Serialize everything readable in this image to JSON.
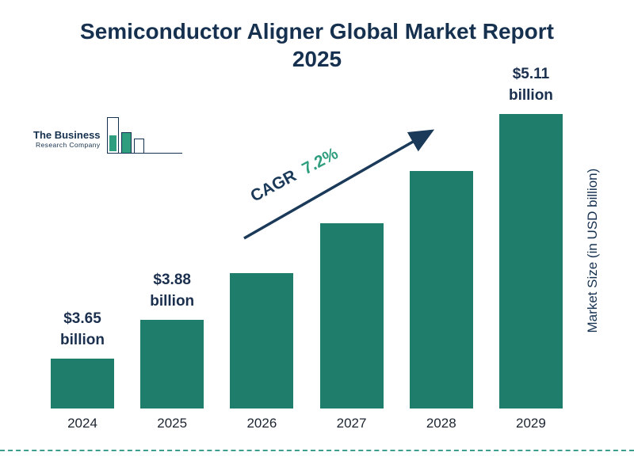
{
  "title": "Semiconductor Aligner Global Market Report\n2025",
  "logo": {
    "line1": "The Business",
    "line2": "Research Company"
  },
  "cagr": {
    "label": "CAGR",
    "value": "7.2%"
  },
  "colors": {
    "bar": "#1f7d6c",
    "navy": "#16314f",
    "green": "#2e9e7e",
    "dashed_line": "#3e9e8e"
  },
  "chart_data": {
    "type": "bar",
    "title": "Semiconductor Aligner Global Market Report 2025",
    "xlabel": "",
    "ylabel": "Market Size (in USD billion)",
    "categories": [
      "2024",
      "2025",
      "2026",
      "2027",
      "2028",
      "2029"
    ],
    "values": [
      3.65,
      3.88,
      4.16,
      4.46,
      4.77,
      5.11
    ],
    "ylim": [
      3.35,
      5.3
    ],
    "grid": false,
    "legend": false,
    "bars": [
      {
        "year": "2024",
        "value": 3.65,
        "label": "$3.65\nbillion"
      },
      {
        "year": "2025",
        "value": 3.88,
        "label": "$3.88\nbillion"
      },
      {
        "year": "2026",
        "value": 4.16,
        "label": null
      },
      {
        "year": "2027",
        "value": 4.46,
        "label": null
      },
      {
        "year": "2028",
        "value": 4.77,
        "label": null
      },
      {
        "year": "2029",
        "value": 5.11,
        "label": "$5.11\nbillion"
      }
    ],
    "annotation": "CAGR 7.2%"
  }
}
